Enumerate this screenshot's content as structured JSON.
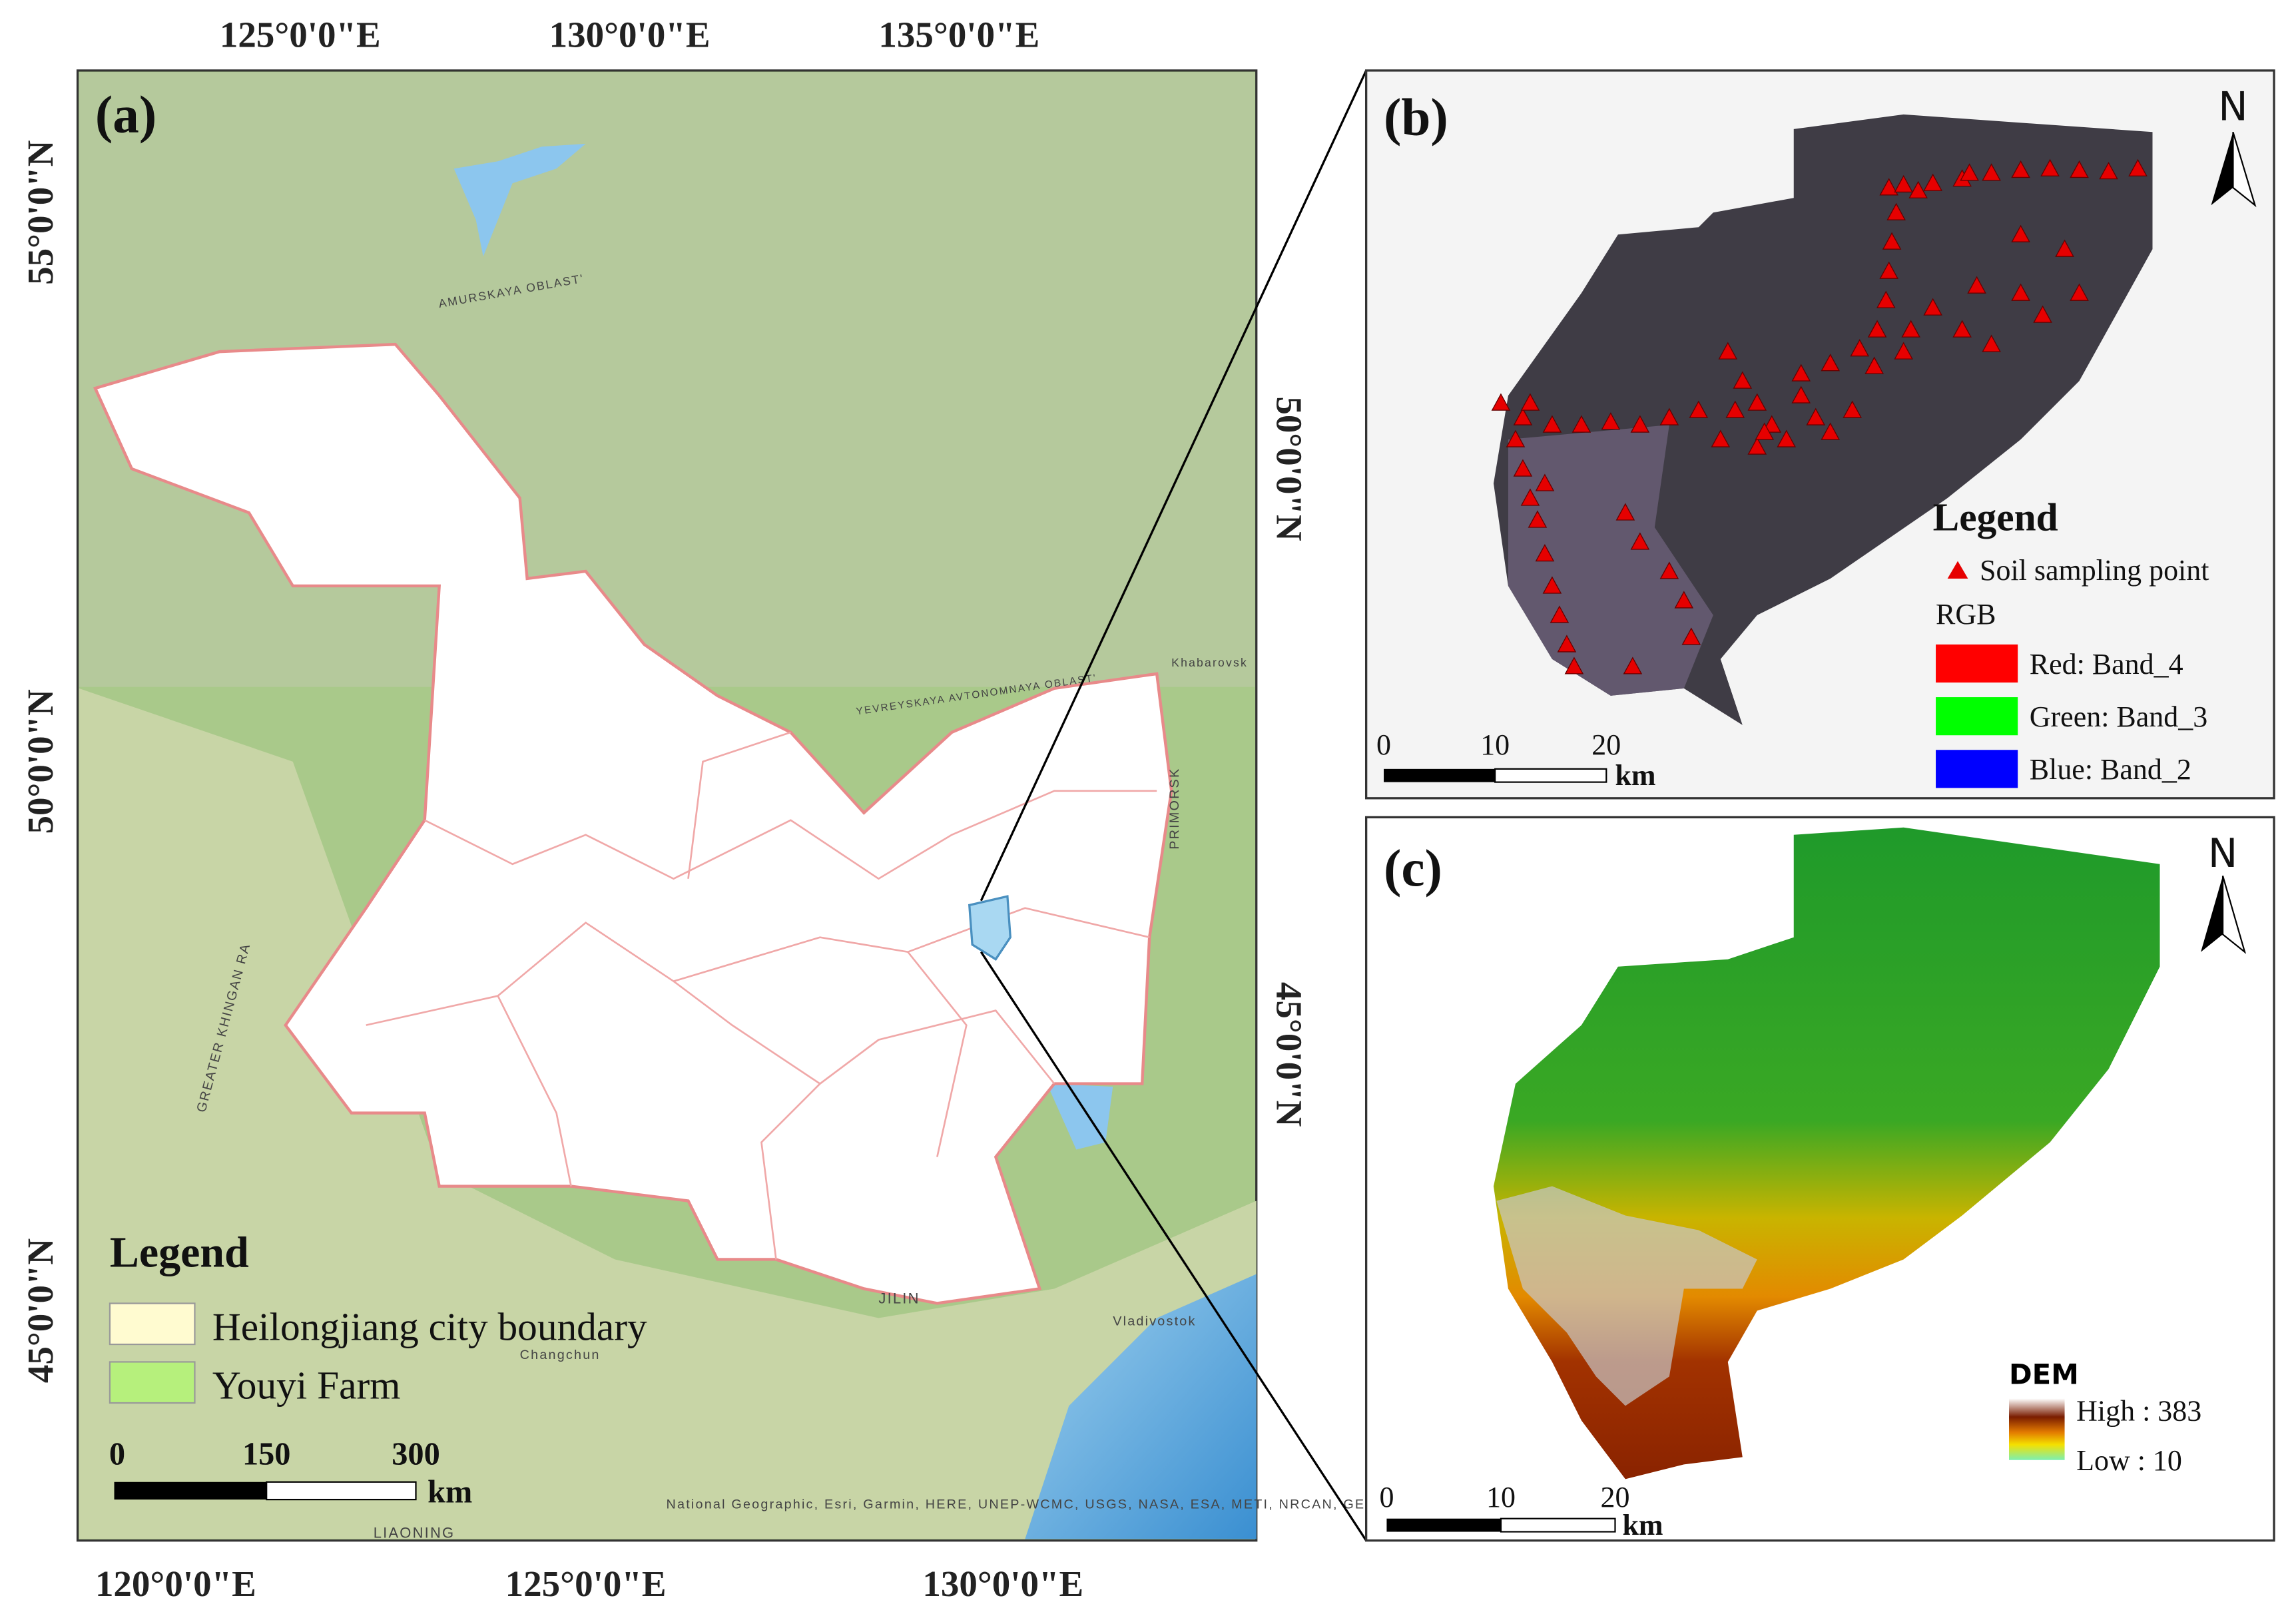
{
  "panel_a": {
    "label": "(a)",
    "top_labels": [
      "125°0'0\"E",
      "130°0'0\"E",
      "135°0'0\"E"
    ],
    "bottom_labels": [
      "120°0'0\"E",
      "125°0'0\"E",
      "130°0'0\"E"
    ],
    "left_labels": [
      "55°0'0\"N",
      "50°0'0\"N",
      "45°0'0\"N"
    ],
    "right_labels": [
      "50°0'0\"N",
      "45°0'0\"N"
    ],
    "places": [
      "AMURSKAYA OBLAST'",
      "GREATER KHINGAN RA",
      "YEVREYSKAYA AVTONOMNAYA OBLAST'",
      "PRIMORSK",
      "JILIN",
      "LIAONING",
      "Changchun",
      "Vladivostok",
      "Khabarovsk"
    ],
    "legend": {
      "title": "Legend",
      "items": [
        "Heilongjiang city boundary",
        "Youyi Farm"
      ]
    },
    "scale": {
      "ticks": [
        "0",
        "150",
        "300"
      ],
      "unit": "km"
    },
    "attribution": "National Geographic, Esri, Garmin, HERE, UNEP-WCMC, USGS, NASA, ESA, METI, NRCAN, GEBCO, NOAA, increment P Corp."
  },
  "panel_b": {
    "label": "(b)",
    "north": "N",
    "legend": {
      "title": "Legend",
      "items": [
        "Soil sampling point"
      ],
      "rgb_title": "RGB",
      "bands": [
        "Red:   Band_4",
        "Green: Band_3",
        "Blue:  Band_2"
      ]
    },
    "scale": {
      "ticks": [
        "0",
        "10",
        "20"
      ],
      "unit": "km"
    }
  },
  "panel_c": {
    "label": "(c)",
    "north": "N",
    "legend": {
      "title": "DEM",
      "high": "High : 383",
      "low": "Low : 10"
    },
    "scale": {
      "ticks": [
        "0",
        "10",
        "20"
      ],
      "unit": "km"
    }
  }
}
